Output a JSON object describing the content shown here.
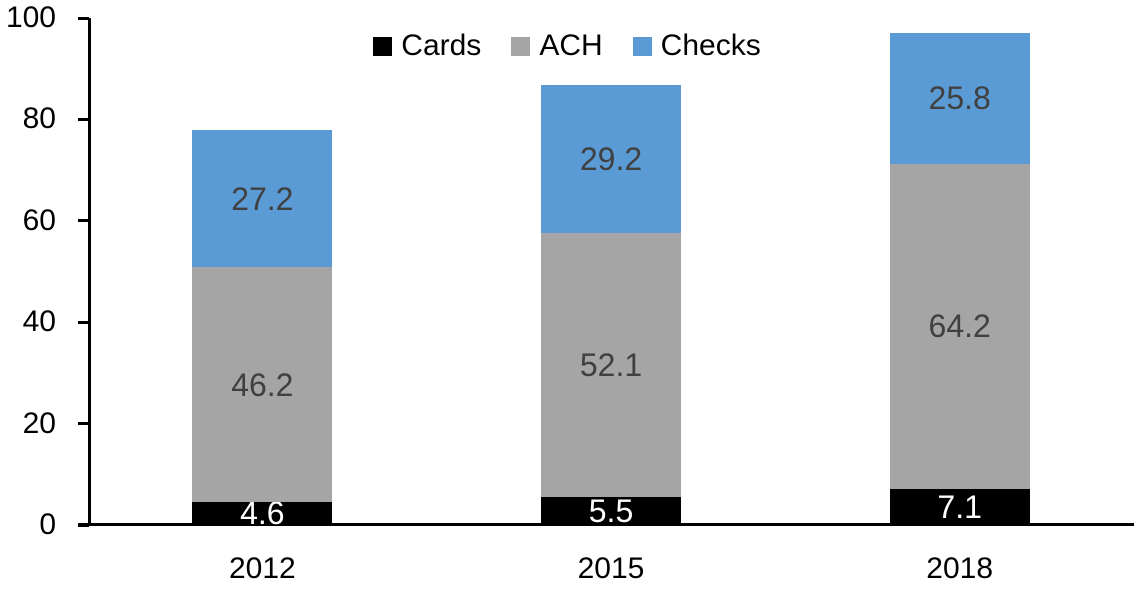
{
  "chart_data": {
    "type": "bar",
    "stacked": true,
    "title": "",
    "xlabel": "",
    "ylabel": "",
    "categories": [
      "2012",
      "2015",
      "2018"
    ],
    "series": [
      {
        "name": "Cards",
        "color": "#000000",
        "label_color": "#ffffff",
        "values": [
          4.6,
          5.5,
          7.1
        ]
      },
      {
        "name": "ACH",
        "color": "#a5a5a5",
        "label_color": "#404040",
        "values": [
          46.2,
          52.1,
          64.2
        ]
      },
      {
        "name": "Checks",
        "color": "#5b9bd5",
        "label_color": "#404040",
        "values": [
          27.2,
          29.2,
          25.8
        ]
      }
    ],
    "ylim": [
      0,
      100
    ],
    "yticks": [
      0,
      20,
      40,
      60,
      80,
      100
    ],
    "grid": false,
    "legend_position": "top-center",
    "axis_color": "#000000",
    "tick_label_color": "#000000"
  }
}
